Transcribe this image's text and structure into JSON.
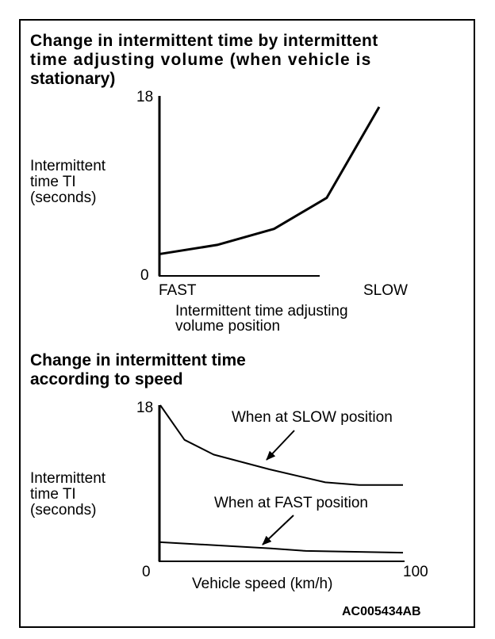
{
  "footer": {
    "code": "AC005434AB"
  },
  "chart_data": [
    {
      "type": "line",
      "title_lines": [
        "Change in intermittent time by intermittent",
        "time adjusting volume (when vehicle is",
        "stationary)"
      ],
      "ylabel_lines": [
        "Intermittent",
        "time TI",
        "(seconds)"
      ],
      "xlabel_lines": [
        "Intermittent time adjusting",
        "volume position"
      ],
      "x_tick_labels": {
        "left": "FAST",
        "right": "SLOW"
      },
      "y_tick_labels": {
        "bottom": "0",
        "top": "18"
      },
      "ylim": [
        0,
        18
      ],
      "xlim": [
        0,
        1
      ],
      "series": [
        {
          "x": [
            0,
            0.26,
            0.52,
            0.76,
            1.0
          ],
          "y": [
            2.2,
            3.1,
            4.7,
            7.8,
            16.9
          ]
        }
      ]
    },
    {
      "type": "line",
      "title_lines": [
        "Change in intermittent time",
        "according to speed"
      ],
      "ylabel_lines": [
        "Intermittent",
        "time TI",
        "(seconds)"
      ],
      "xlabel": "Vehicle speed  (km/h)",
      "x_tick_labels": {
        "left": "0",
        "right": "100"
      },
      "y_tick_labels": {
        "top": "18"
      },
      "xlim": [
        0,
        100
      ],
      "ylim": [
        0,
        18
      ],
      "series": [
        {
          "name": "When at SLOW position",
          "x": [
            0,
            10,
            22,
            45,
            68,
            82,
            100
          ],
          "y": [
            18,
            14,
            12.3,
            10.6,
            9.1,
            8.8,
            8.8
          ]
        },
        {
          "name": "When at FAST position",
          "x": [
            0,
            45,
            60,
            100
          ],
          "y": [
            2.2,
            1.5,
            1.2,
            1.0
          ]
        }
      ]
    }
  ]
}
